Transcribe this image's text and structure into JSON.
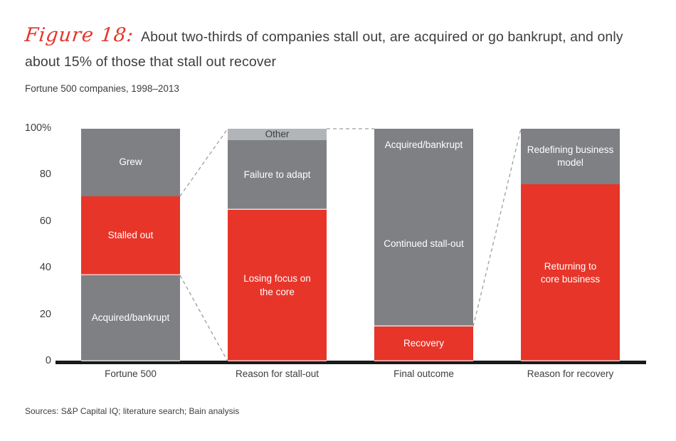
{
  "header": {
    "figure_label": "Figure 18:",
    "title": "About two-thirds of companies stall out, are acquired or go bankrupt, and only about 15% of those that stall out recover",
    "subtitle": "Fortune 500 companies, 1998–2013"
  },
  "footer": {
    "sources": "Sources: S&P Capital IQ; literature search; Bain analysis"
  },
  "colors": {
    "red": "#e7352a",
    "dark_gray": "#7e8083",
    "light_gray": "#b2b5b7",
    "axis": "#1a1a1a",
    "connector": "#9e9e9e",
    "text_dark": "#3d3d3f",
    "figure_label_red": "#e5342b"
  },
  "chart_data": {
    "type": "bar",
    "stacked": true,
    "unit": "%",
    "title": "About two-thirds of companies stall out, are acquired or go bankrupt, and only about 15% of those that stall out recover",
    "subtitle": "Fortune 500 companies, 1998–2013",
    "xlabel": "",
    "ylabel": "",
    "ylim": [
      0,
      100
    ],
    "grid": false,
    "legend": "none",
    "yticks": [
      {
        "label": "100%",
        "value": 100
      },
      {
        "label": "80",
        "value": 80
      },
      {
        "label": "60",
        "value": 60
      },
      {
        "label": "40",
        "value": 40
      },
      {
        "label": "20",
        "value": 20
      },
      {
        "label": "0",
        "value": 0
      }
    ],
    "categories": [
      "Fortune 500",
      "Reason for stall-out",
      "Final outcome",
      "Reason for recovery"
    ],
    "bars": [
      {
        "category": "Fortune 500",
        "segments": [
          {
            "label": "Acquired/bankrupt",
            "value": 37,
            "color": "dark_gray",
            "text": "light"
          },
          {
            "label": "Stalled out",
            "value": 34,
            "color": "red",
            "text": "light"
          },
          {
            "label": "Grew",
            "value": 29,
            "color": "dark_gray",
            "text": "light"
          }
        ]
      },
      {
        "category": "Reason for stall-out",
        "segments": [
          {
            "label": "Losing focus on\nthe core",
            "value": 65,
            "color": "red",
            "text": "light"
          },
          {
            "label": "Failure to adapt",
            "value": 30,
            "color": "dark_gray",
            "text": "light"
          },
          {
            "label": "Other",
            "value": 5,
            "color": "light_gray",
            "text": "dark"
          }
        ]
      },
      {
        "category": "Final outcome",
        "segments": [
          {
            "label": "Recovery",
            "value": 15,
            "color": "red",
            "text": "light"
          },
          {
            "label": "Continued stall-out",
            "value": 71,
            "color": "dark_gray",
            "text": "light"
          },
          {
            "label": "Acquired/bankrupt",
            "value": 14,
            "color": "dark_gray",
            "text": "light"
          }
        ]
      },
      {
        "category": "Reason for recovery",
        "segments": [
          {
            "label": "Returning to\ncore business",
            "value": 76,
            "color": "red",
            "text": "light"
          },
          {
            "label": "Redefining business\nmodel",
            "value": 24,
            "color": "dark_gray",
            "text": "light"
          }
        ]
      }
    ],
    "connectors": [
      {
        "from_bar": 0,
        "from_pct": 71,
        "to_bar": 1,
        "to_pct": 100
      },
      {
        "from_bar": 0,
        "from_pct": 37,
        "to_bar": 1,
        "to_pct": 0
      },
      {
        "from_bar": 1,
        "from_pct": 100,
        "to_bar": 2,
        "to_pct": 100
      },
      {
        "from_bar": 2,
        "from_pct": 15,
        "to_bar": 3,
        "to_pct": 100
      }
    ]
  }
}
